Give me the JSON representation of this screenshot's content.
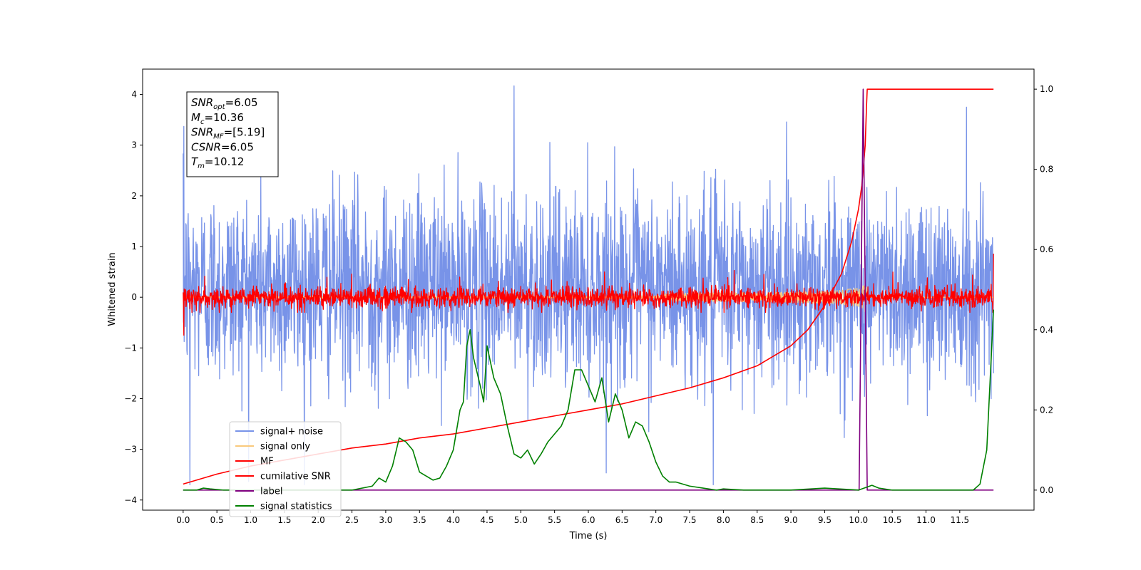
{
  "chart_data": {
    "type": "line",
    "xlabel": "Time (s)",
    "ylabel_left": "Whitened strain",
    "ylabel_right": "",
    "xlim": [
      -0.6,
      12.6
    ],
    "ylim_left": [
      -4.2,
      4.5
    ],
    "ylim_right": [
      -0.05,
      1.05
    ],
    "x_ticks": [
      0.0,
      0.5,
      1.0,
      1.5,
      2.0,
      2.5,
      3.0,
      3.5,
      4.0,
      4.5,
      5.0,
      5.5,
      6.0,
      6.5,
      7.0,
      7.5,
      8.0,
      8.5,
      9.0,
      9.5,
      10.0,
      10.5,
      11.0,
      11.5
    ],
    "x_tick_labels": [
      "0.0",
      "0.5",
      "1.0",
      "1.5",
      "2.0",
      "2.5",
      "3.0",
      "3.5",
      "4.0",
      "4.5",
      "5.0",
      "5.5",
      "6.0",
      "6.5",
      "7.0",
      "7.5",
      "8.0",
      "8.5",
      "9.0",
      "9.5",
      "10.0",
      "10.5",
      "11.0",
      "11.5"
    ],
    "y_ticks_left": [
      -4,
      -3,
      -2,
      -1,
      0,
      1,
      2,
      3,
      4
    ],
    "y_tick_labels_left": [
      "−4",
      "−3",
      "−2",
      "−1",
      "0",
      "1",
      "2",
      "3",
      "4"
    ],
    "y_ticks_right": [
      0.0,
      0.2,
      0.4,
      0.6,
      0.8,
      1.0
    ],
    "y_tick_labels_right": [
      "0.0",
      "0.2",
      "0.4",
      "0.6",
      "0.8",
      "1.0"
    ],
    "legend_position": "lower-left",
    "grid": false,
    "series": [
      {
        "name": "signal+ noise",
        "axis": "left",
        "color": "#7893e8",
        "kind": "noise",
        "x_range": [
          0.0,
          12.0
        ],
        "amplitude_envelope": [
          -3.7,
          4.17
        ],
        "peaks": [
          [
            0.01,
            3.37
          ],
          [
            4.9,
            4.17
          ],
          [
            11.6,
            3.75
          ],
          [
            0.1,
            -3.7
          ],
          [
            7.85,
            -3.7
          ]
        ]
      },
      {
        "name": "signal only",
        "axis": "left",
        "color": "#f9c97c",
        "kind": "chirp",
        "x_range": [
          0.0,
          12.0
        ],
        "merger_time": 10.12,
        "peak_amplitude": 0.45
      },
      {
        "name": "MF",
        "axis": "left",
        "color": "#ff0000",
        "kind": "noise",
        "x_range": [
          0.0,
          12.0
        ],
        "amplitude_envelope": [
          -0.3,
          0.6
        ],
        "peaks": [
          [
            0.01,
            1.0
          ],
          [
            12.0,
            0.86
          ],
          [
            0.01,
            -0.75
          ]
        ]
      },
      {
        "name": "cumilative SNR",
        "axis": "right",
        "color": "#ff0000",
        "kind": "line",
        "x": [
          0.0,
          0.5,
          1.0,
          1.5,
          2.0,
          2.5,
          3.0,
          3.5,
          4.0,
          4.5,
          5.0,
          5.5,
          6.0,
          6.5,
          7.0,
          7.5,
          8.0,
          8.5,
          9.0,
          9.25,
          9.5,
          9.75,
          9.9,
          10.0,
          10.05,
          10.1,
          10.12,
          10.13,
          12.0
        ],
        "y": [
          0.015,
          0.04,
          0.06,
          0.075,
          0.09,
          0.105,
          0.115,
          0.13,
          0.14,
          0.155,
          0.17,
          0.185,
          0.2,
          0.215,
          0.235,
          0.255,
          0.28,
          0.31,
          0.36,
          0.4,
          0.46,
          0.54,
          0.62,
          0.7,
          0.76,
          0.86,
          0.96,
          1.0,
          1.0
        ]
      },
      {
        "name": "label",
        "axis": "right",
        "color": "#800080",
        "kind": "line",
        "x": [
          0.0,
          10.0,
          10.01,
          10.07,
          10.13,
          10.14,
          12.0
        ],
        "y": [
          0.0,
          0.0,
          0.0,
          1.0,
          0.0,
          0.0,
          0.0
        ]
      },
      {
        "name": "signal statistics",
        "axis": "right",
        "color": "#008000",
        "kind": "line",
        "x": [
          0.0,
          0.2,
          0.3,
          0.4,
          0.6,
          0.8,
          1.0,
          1.5,
          2.0,
          2.5,
          2.8,
          2.9,
          3.0,
          3.1,
          3.2,
          3.3,
          3.4,
          3.5,
          3.6,
          3.7,
          3.8,
          3.9,
          4.0,
          4.1,
          4.15,
          4.2,
          4.25,
          4.3,
          4.4,
          4.45,
          4.5,
          4.6,
          4.7,
          4.75,
          4.8,
          4.9,
          5.0,
          5.1,
          5.2,
          5.3,
          5.4,
          5.5,
          5.6,
          5.7,
          5.8,
          5.9,
          6.0,
          6.1,
          6.2,
          6.3,
          6.4,
          6.5,
          6.6,
          6.7,
          6.8,
          6.9,
          7.0,
          7.1,
          7.2,
          7.3,
          7.5,
          7.7,
          7.9,
          8.0,
          8.3,
          9.0,
          9.5,
          10.0,
          10.2,
          10.3,
          10.5,
          11.0,
          11.5,
          11.7,
          11.8,
          11.9,
          12.0
        ],
        "y": [
          0.0,
          0.0,
          0.005,
          0.003,
          0.0,
          0.0,
          0.0,
          0.0,
          0.0,
          0.0,
          0.01,
          0.03,
          0.02,
          0.06,
          0.13,
          0.12,
          0.1,
          0.045,
          0.035,
          0.025,
          0.03,
          0.06,
          0.1,
          0.2,
          0.22,
          0.36,
          0.4,
          0.33,
          0.26,
          0.22,
          0.36,
          0.28,
          0.24,
          0.2,
          0.16,
          0.09,
          0.08,
          0.1,
          0.065,
          0.09,
          0.12,
          0.14,
          0.16,
          0.2,
          0.3,
          0.3,
          0.26,
          0.22,
          0.28,
          0.17,
          0.24,
          0.2,
          0.13,
          0.17,
          0.16,
          0.12,
          0.07,
          0.035,
          0.02,
          0.02,
          0.01,
          0.005,
          0.0,
          0.003,
          0.0,
          0.0,
          0.005,
          0.0,
          0.012,
          0.005,
          0.0,
          0.0,
          0.0,
          0.0,
          0.015,
          0.1,
          0.45
        ]
      }
    ]
  },
  "annotation": {
    "lines": [
      {
        "label": "SNR",
        "sub": "opt",
        "value": "=6.05"
      },
      {
        "label": "M",
        "sub": "c",
        "value": "=10.36"
      },
      {
        "label": "SNR",
        "sub": "MF",
        "value": "=[5.19]"
      },
      {
        "label": "CSNR",
        "sub": "",
        "value": "=6.05"
      },
      {
        "label": "T",
        "sub": "m",
        "value": "=10.12"
      }
    ]
  }
}
